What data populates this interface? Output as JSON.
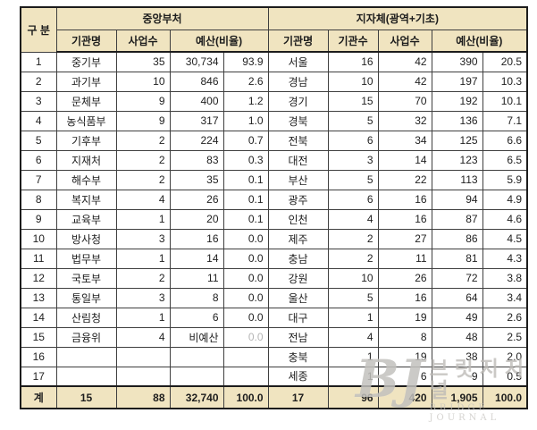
{
  "table": {
    "header": {
      "gubun": "구 분",
      "central_title": "중앙부처",
      "local_title": "지자체(광역+기초)",
      "central_cols": {
        "org_name": "기관명",
        "biz_count": "사업수",
        "budget_ratio": "예산(비율)"
      },
      "local_cols": {
        "org_name": "기관명",
        "org_count": "기관수",
        "biz_count": "사업수",
        "budget_ratio": "예산(비율)"
      }
    },
    "rows": [
      {
        "no": "1",
        "c_name": "중기부",
        "c_biz": "35",
        "c_budget": "30,734",
        "c_ratio": "93.9",
        "c_ratio_muted": false,
        "l_name": "서울",
        "l_org": "16",
        "l_biz": "42",
        "l_budget": "390",
        "l_ratio": "20.5"
      },
      {
        "no": "2",
        "c_name": "과기부",
        "c_biz": "10",
        "c_budget": "846",
        "c_ratio": "2.6",
        "c_ratio_muted": false,
        "l_name": "경남",
        "l_org": "10",
        "l_biz": "42",
        "l_budget": "197",
        "l_ratio": "10.3"
      },
      {
        "no": "3",
        "c_name": "문체부",
        "c_biz": "9",
        "c_budget": "400",
        "c_ratio": "1.2",
        "c_ratio_muted": false,
        "l_name": "경기",
        "l_org": "15",
        "l_biz": "70",
        "l_budget": "192",
        "l_ratio": "10.1"
      },
      {
        "no": "4",
        "c_name": "농식품부",
        "c_biz": "9",
        "c_budget": "317",
        "c_ratio": "1.0",
        "c_ratio_muted": false,
        "l_name": "경북",
        "l_org": "5",
        "l_biz": "32",
        "l_budget": "136",
        "l_ratio": "7.1"
      },
      {
        "no": "5",
        "c_name": "기후부",
        "c_biz": "2",
        "c_budget": "224",
        "c_ratio": "0.7",
        "c_ratio_muted": false,
        "l_name": "전북",
        "l_org": "6",
        "l_biz": "34",
        "l_budget": "125",
        "l_ratio": "6.6"
      },
      {
        "no": "6",
        "c_name": "지재처",
        "c_biz": "2",
        "c_budget": "83",
        "c_ratio": "0.3",
        "c_ratio_muted": false,
        "l_name": "대전",
        "l_org": "3",
        "l_biz": "14",
        "l_budget": "123",
        "l_ratio": "6.5"
      },
      {
        "no": "7",
        "c_name": "해수부",
        "c_biz": "2",
        "c_budget": "35",
        "c_ratio": "0.1",
        "c_ratio_muted": false,
        "l_name": "부산",
        "l_org": "5",
        "l_biz": "22",
        "l_budget": "113",
        "l_ratio": "5.9"
      },
      {
        "no": "8",
        "c_name": "복지부",
        "c_biz": "4",
        "c_budget": "26",
        "c_ratio": "0.1",
        "c_ratio_muted": false,
        "l_name": "광주",
        "l_org": "6",
        "l_biz": "16",
        "l_budget": "94",
        "l_ratio": "4.9"
      },
      {
        "no": "9",
        "c_name": "교육부",
        "c_biz": "1",
        "c_budget": "20",
        "c_ratio": "0.1",
        "c_ratio_muted": false,
        "l_name": "인천",
        "l_org": "4",
        "l_biz": "16",
        "l_budget": "87",
        "l_ratio": "4.6"
      },
      {
        "no": "10",
        "c_name": "방사청",
        "c_biz": "3",
        "c_budget": "16",
        "c_ratio": "0.0",
        "c_ratio_muted": false,
        "l_name": "제주",
        "l_org": "2",
        "l_biz": "27",
        "l_budget": "86",
        "l_ratio": "4.5"
      },
      {
        "no": "11",
        "c_name": "법무부",
        "c_biz": "1",
        "c_budget": "14",
        "c_ratio": "0.0",
        "c_ratio_muted": false,
        "l_name": "충남",
        "l_org": "2",
        "l_biz": "11",
        "l_budget": "81",
        "l_ratio": "4.3"
      },
      {
        "no": "12",
        "c_name": "국토부",
        "c_biz": "2",
        "c_budget": "11",
        "c_ratio": "0.0",
        "c_ratio_muted": false,
        "l_name": "강원",
        "l_org": "10",
        "l_biz": "26",
        "l_budget": "72",
        "l_ratio": "3.8"
      },
      {
        "no": "13",
        "c_name": "통일부",
        "c_biz": "3",
        "c_budget": "8",
        "c_ratio": "0.0",
        "c_ratio_muted": false,
        "l_name": "울산",
        "l_org": "5",
        "l_biz": "16",
        "l_budget": "64",
        "l_ratio": "3.4"
      },
      {
        "no": "14",
        "c_name": "산림청",
        "c_biz": "1",
        "c_budget": "6",
        "c_ratio": "0.0",
        "c_ratio_muted": false,
        "l_name": "대구",
        "l_org": "1",
        "l_biz": "19",
        "l_budget": "49",
        "l_ratio": "2.6"
      },
      {
        "no": "15",
        "c_name": "금융위",
        "c_biz": "4",
        "c_budget": "비예산",
        "c_ratio": "0.0",
        "c_ratio_muted": true,
        "l_name": "전남",
        "l_org": "4",
        "l_biz": "8",
        "l_budget": "48",
        "l_ratio": "2.5"
      },
      {
        "no": "16",
        "c_name": "",
        "c_biz": "",
        "c_budget": "",
        "c_ratio": "",
        "c_ratio_muted": false,
        "l_name": "충북",
        "l_org": "1",
        "l_biz": "19",
        "l_budget": "38",
        "l_ratio": "2.0"
      },
      {
        "no": "17",
        "c_name": "",
        "c_biz": "",
        "c_budget": "",
        "c_ratio": "",
        "c_ratio_muted": false,
        "l_name": "세종",
        "l_org": "1",
        "l_biz": "6",
        "l_budget": "9",
        "l_ratio": "0.5"
      }
    ],
    "total": {
      "label": "계",
      "c_name": "15",
      "c_biz": "88",
      "c_budget": "32,740",
      "c_ratio": "100.0",
      "l_name": "17",
      "l_org": "96",
      "l_biz": "420",
      "l_budget": "1,905",
      "l_ratio": "100.0"
    }
  },
  "watermark": {
    "logo": "B",
    "logo_j": "J",
    "title": "브릿지저널",
    "subtitle": "BRIDGE JOURNAL"
  },
  "colors": {
    "header_bg": "#f0e4c0",
    "border_dark": "#1c1c1c",
    "border_inner": "#3f3f3f",
    "muted_text": "#b5b5b5",
    "watermark_gray": "#bab8b4"
  }
}
